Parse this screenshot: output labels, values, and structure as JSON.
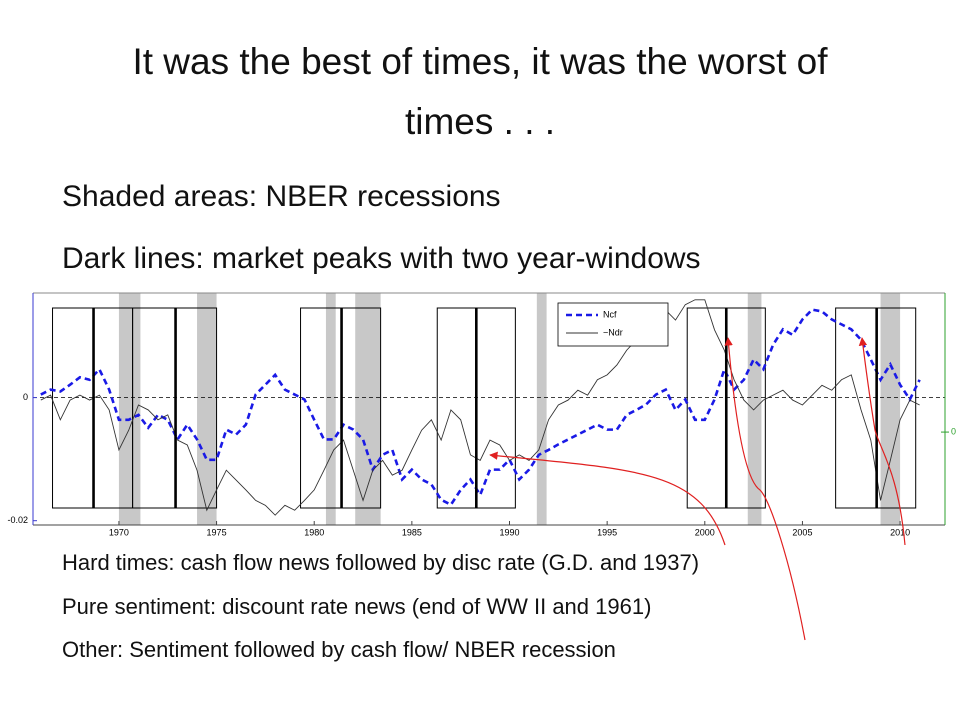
{
  "title": "It was the best of times, it was the worst of times . . .",
  "bullets": [
    "Shaded areas: NBER recessions",
    "Dark lines: market peaks with two year-windows"
  ],
  "notes": [
    "Hard times: cash flow news followed by disc rate (G.D. and 1937)",
    "Pure sentiment: discount rate news (end of WW II and 1961)",
    "Other: Sentiment followed by cash flow/ NBER recession"
  ],
  "chart_data": {
    "type": "line",
    "x": [
      1966,
      1966.5,
      1967,
      1967.5,
      1968,
      1968.5,
      1969,
      1969.5,
      1970,
      1970.5,
      1971,
      1971.5,
      1972,
      1972.5,
      1973,
      1973.5,
      1974,
      1974.5,
      1975,
      1975.5,
      1976,
      1976.5,
      1977,
      1977.5,
      1978,
      1978.5,
      1979,
      1979.5,
      1980,
      1980.5,
      1981,
      1981.5,
      1982,
      1982.5,
      1983,
      1983.5,
      1984,
      1984.5,
      1985,
      1985.5,
      1986,
      1986.5,
      1987,
      1987.5,
      1988,
      1988.5,
      1989,
      1989.5,
      1990,
      1990.5,
      1991,
      1991.5,
      1992,
      1992.5,
      1993,
      1993.5,
      1994,
      1994.5,
      1995,
      1995.5,
      1996,
      1996.5,
      1997,
      1997.5,
      1998,
      1998.5,
      1999,
      1999.5,
      2000,
      2000.5,
      2001,
      2001.5,
      2002,
      2002.5,
      2003,
      2003.5,
      2004,
      2004.5,
      2005,
      2005.5,
      2006,
      2006.5,
      2007,
      2007.5,
      2008,
      2008.5,
      2009,
      2009.5,
      2010,
      2010.5,
      2011
    ],
    "series": [
      {
        "name": "Ncf",
        "color": "#1a1ae6",
        "style": "dashed",
        "values": [
          0.0005,
          0.0013,
          0.001,
          0.0021,
          0.0033,
          0.0029,
          0.0046,
          0.0013,
          -0.0036,
          -0.0036,
          -0.0028,
          -0.0049,
          -0.0028,
          -0.0036,
          -0.0068,
          -0.0044,
          -0.0068,
          -0.0101,
          -0.0101,
          -0.0052,
          -0.006,
          -0.0044,
          0.0005,
          0.0021,
          0.0037,
          0.0013,
          0.0005,
          -0.0003,
          -0.0036,
          -0.0068,
          -0.0068,
          -0.0044,
          -0.0052,
          -0.0068,
          -0.0117,
          -0.0093,
          -0.0085,
          -0.0133,
          -0.0117,
          -0.0133,
          -0.0141,
          -0.0166,
          -0.0174,
          -0.015,
          -0.0133,
          -0.0158,
          -0.0117,
          -0.0117,
          -0.0101,
          -0.0133,
          -0.0117,
          -0.0093,
          -0.0085,
          -0.0076,
          -0.0068,
          -0.006,
          -0.0052,
          -0.0044,
          -0.0052,
          -0.0052,
          -0.0028,
          -0.002,
          -0.0011,
          0.0005,
          0.0013,
          -0.002,
          -0.0003,
          -0.0036,
          -0.0036,
          -0.0003,
          0.0046,
          0.0013,
          0.0029,
          0.0062,
          0.0046,
          0.0086,
          0.0111,
          0.0102,
          0.0127,
          0.0143,
          0.014,
          0.0127,
          0.0119,
          0.0111,
          0.0094,
          0.0062,
          0.0029,
          0.0054,
          0.0021,
          -0.0003,
          0.0029
        ]
      },
      {
        "name": "−Ndr",
        "color": "#333333",
        "style": "solid",
        "axis": "y2",
        "values": [
          0.0052,
          0.006,
          0.002,
          0.0052,
          0.006,
          0.0052,
          0.006,
          0.0036,
          -0.0029,
          0.0003,
          0.0044,
          0.0036,
          0.002,
          0.0028,
          -0.0013,
          -0.0021,
          -0.0062,
          -0.0127,
          -0.0094,
          -0.0062,
          -0.0078,
          -0.0094,
          -0.0111,
          -0.0119,
          -0.0135,
          -0.0119,
          -0.0127,
          -0.0111,
          -0.0094,
          -0.0062,
          -0.0029,
          -0.0013,
          -0.0062,
          -0.0111,
          -0.0062,
          -0.0046,
          -0.007,
          -0.0062,
          -0.0029,
          0.0003,
          0.002,
          -0.0013,
          0.0036,
          0.002,
          -0.0037,
          -0.0046,
          -0.0013,
          -0.0021,
          -0.0046,
          -0.0037,
          -0.0046,
          -0.0029,
          0.002,
          0.0044,
          0.0052,
          0.0068,
          0.006,
          0.0085,
          0.0093,
          0.0109,
          0.0133,
          0.015,
          0.0158,
          0.0182,
          0.0198,
          0.0182,
          0.0207,
          0.0215,
          0.0215,
          0.0166,
          0.0133,
          0.0085,
          0.0052,
          0.0036,
          0.0052,
          0.006,
          0.0068,
          0.0052,
          0.0044,
          0.006,
          0.0076,
          0.0068,
          0.0085,
          0.0093,
          0.0036,
          -0.0013,
          -0.0111,
          -0.0046,
          0.002,
          0.0052,
          0.0044
        ]
      }
    ],
    "xlim": [
      1965.6,
      2012.3
    ],
    "xticks": [
      1970,
      1975,
      1980,
      1985,
      1990,
      1995,
      2000,
      2005,
      2010
    ],
    "ylim": [
      -0.0207,
      0.017
    ],
    "yticks": [
      -0.02,
      0
    ],
    "y2lim": [
      -0.0151,
      0.0226
    ],
    "y2ticks": [
      0
    ],
    "y_axis_color": "#3a3ad0",
    "y2_axis_color": "#2ca02c",
    "reference_line": 0,
    "recession_color": "#c8c8c8",
    "recessions": [
      [
        1970.0,
        1971.1
      ],
      [
        1974.0,
        1975.0
      ],
      [
        1980.6,
        1981.1
      ],
      [
        1982.1,
        1983.4
      ],
      [
        1991.4,
        1991.9
      ],
      [
        2002.2,
        2002.9
      ],
      [
        2009.0,
        2010.0
      ]
    ],
    "peaks": [
      1968.7,
      1972.9,
      1981.4,
      1988.3,
      2001.1,
      2008.8
    ],
    "windows": [
      [
        1966.6,
        1970.7
      ],
      [
        1970.7,
        1975.0
      ],
      [
        1979.3,
        1983.4
      ],
      [
        1986.3,
        1990.3
      ],
      [
        1999.1,
        2003.1
      ],
      [
        2006.7,
        2010.8
      ]
    ]
  }
}
